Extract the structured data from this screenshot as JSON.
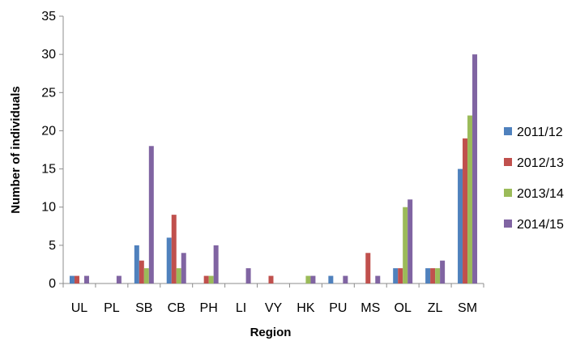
{
  "chart_data": {
    "type": "bar",
    "title": "",
    "xlabel": "Region",
    "ylabel": "Number of individuals",
    "ylim": [
      0,
      35
    ],
    "yticks": [
      0,
      5,
      10,
      15,
      20,
      25,
      30,
      35
    ],
    "grid": false,
    "legend_position": "right",
    "categories": [
      "UL",
      "PL",
      "SB",
      "CB",
      "PH",
      "LI",
      "VY",
      "HK",
      "PU",
      "MS",
      "OL",
      "ZL",
      "SM"
    ],
    "series": [
      {
        "name": "2011/12",
        "color": "#4F81BD",
        "values": [
          1,
          0,
          5,
          6,
          0,
          0,
          0,
          0,
          1,
          0,
          2,
          2,
          15
        ]
      },
      {
        "name": "2012/13",
        "color": "#C0504D",
        "values": [
          1,
          0,
          3,
          9,
          1,
          0,
          1,
          0,
          0,
          4,
          2,
          2,
          19
        ]
      },
      {
        "name": "2013/14",
        "color": "#9BBB59",
        "values": [
          0,
          0,
          2,
          2,
          1,
          0,
          0,
          1,
          0,
          0,
          10,
          2,
          22
        ]
      },
      {
        "name": "2014/15",
        "color": "#8064A2",
        "values": [
          1,
          1,
          18,
          4,
          5,
          2,
          0,
          1,
          1,
          1,
          11,
          3,
          30
        ]
      }
    ]
  }
}
